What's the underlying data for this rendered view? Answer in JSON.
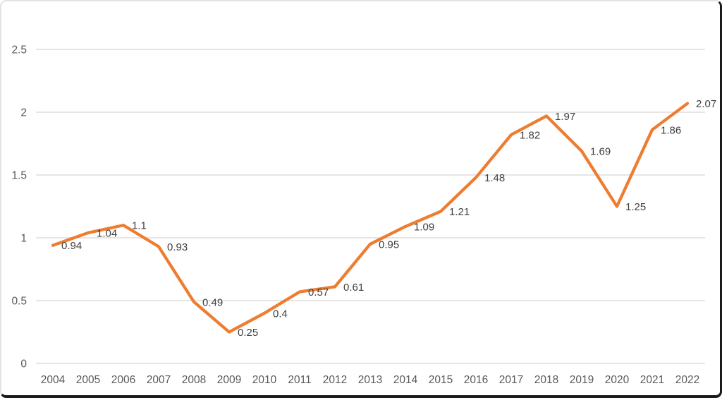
{
  "chart_data": {
    "type": "line",
    "title": "",
    "categories": [
      "2004",
      "2005",
      "2006",
      "2007",
      "2008",
      "2009",
      "2010",
      "2011",
      "2012",
      "2013",
      "2014",
      "2015",
      "2016",
      "2017",
      "2018",
      "2019",
      "2020",
      "2021",
      "2022"
    ],
    "values": [
      0.94,
      1.04,
      1.1,
      0.93,
      0.49,
      0.25,
      0.4,
      0.57,
      0.61,
      0.95,
      1.09,
      1.21,
      1.48,
      1.82,
      1.97,
      1.69,
      1.25,
      1.86,
      2.07
    ],
    "data_labels": [
      "0.94",
      "1.04",
      "1.1",
      "0.93",
      "0.49",
      "0.25",
      "0.4",
      "0.57",
      "0.61",
      "0.95",
      "1.09",
      "1.21",
      "1.48",
      "1.82",
      "1.97",
      "1.69",
      "1.25",
      "1.86",
      "2.07"
    ],
    "y_tick_labels": [
      "0",
      "0.5",
      "1",
      "1.5",
      "2",
      "2.5"
    ],
    "y_tick_values": [
      0,
      0.5,
      1,
      1.5,
      2,
      2.5
    ],
    "ylim": [
      0,
      2.5
    ],
    "grid": true,
    "legend": "none",
    "xlabel": "",
    "ylabel": "",
    "colors": {
      "line": "#ED7D31",
      "gridline": "#D6D6D6",
      "axis_tick_label": "#595959",
      "data_label": "#3F3F3F",
      "background": "#FFFFFF"
    }
  }
}
